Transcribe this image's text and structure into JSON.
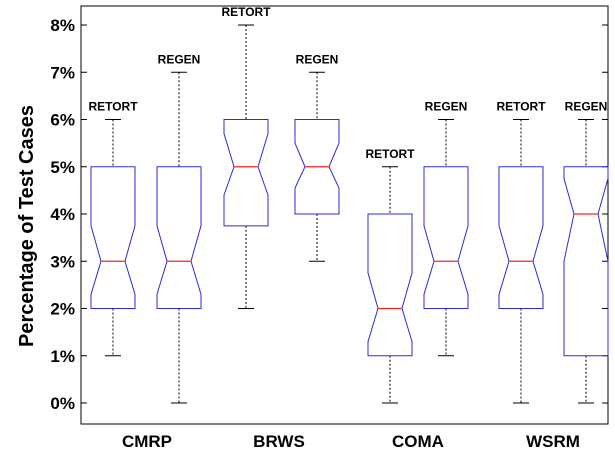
{
  "chart_data": {
    "type": "boxplot",
    "ylabel": "Percentage of Test Cases",
    "ylim": [
      -0.3,
      8.5
    ],
    "yticks": [
      0,
      1,
      2,
      3,
      4,
      5,
      6,
      7,
      8
    ],
    "ytick_labels": [
      "0%",
      "1%",
      "2%",
      "3%",
      "4%",
      "5%",
      "6%",
      "7%",
      "8%"
    ],
    "categories": [
      "CMRP",
      "BRWS",
      "COMA",
      "WSRM"
    ],
    "boxes": [
      {
        "category": "CMRP",
        "label": "RETORT",
        "min": 1,
        "q1": 2,
        "median": 3,
        "q3": 5,
        "max": 6,
        "notch_low": 2.3,
        "notch_high": 3.75
      },
      {
        "category": "CMRP",
        "label": "REGEN",
        "min": 0,
        "q1": 2,
        "median": 3,
        "q3": 5,
        "max": 7,
        "notch_low": 2.3,
        "notch_high": 3.75
      },
      {
        "category": "BRWS",
        "label": "RETORT",
        "min": 2,
        "q1": 3.75,
        "median": 5,
        "q3": 6,
        "max": 8,
        "notch_low": 4.4,
        "notch_high": 5.7
      },
      {
        "category": "BRWS",
        "label": "REGEN",
        "min": 3,
        "q1": 4,
        "median": 5,
        "q3": 6,
        "max": 7,
        "notch_low": 4.55,
        "notch_high": 5.5
      },
      {
        "category": "COMA",
        "label": "RETORT",
        "min": 0,
        "q1": 1,
        "median": 2,
        "q3": 4,
        "max": 5,
        "notch_low": 1.3,
        "notch_high": 2.75
      },
      {
        "category": "COMA",
        "label": "REGEN",
        "min": 1,
        "q1": 2,
        "median": 3,
        "q3": 5,
        "max": 6,
        "notch_low": 2.3,
        "notch_high": 3.75
      },
      {
        "category": "WSRM",
        "label": "RETORT",
        "min": 0,
        "q1": 2,
        "median": 3,
        "q3": 5,
        "max": 6,
        "notch_low": 2.3,
        "notch_high": 3.75
      },
      {
        "category": "WSRM",
        "label": "REGEN",
        "min": 0,
        "q1": 1,
        "median": 4,
        "q3": 5,
        "max": 6,
        "notch_low": 3.0,
        "notch_high": 4.75
      }
    ],
    "colors": {
      "box": "#2b2bd9",
      "median": "#ff2020",
      "whisker": "#000000"
    }
  }
}
